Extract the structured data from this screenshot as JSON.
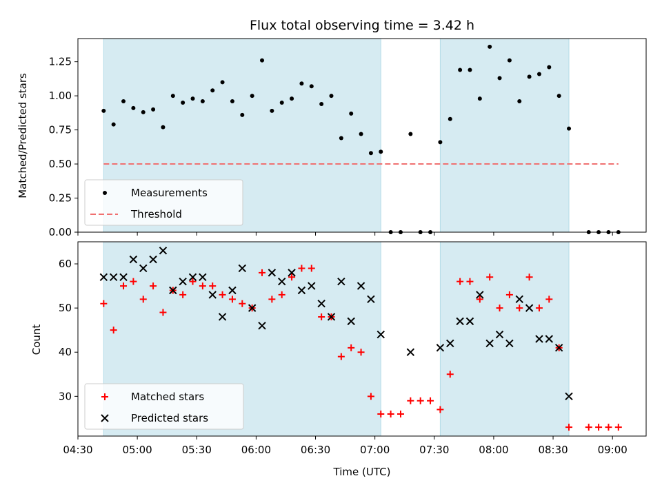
{
  "chart_data": [
    {
      "type": "scatter",
      "title": "Flux total observing time = 3.42 h",
      "ylabel": "Matched/Predicted stars",
      "xlabel": "",
      "ylim": [
        0,
        1.42
      ],
      "xlim": [
        "04:30",
        "09:17"
      ],
      "yticks": [
        0.0,
        0.25,
        0.5,
        0.75,
        1.0,
        1.25
      ],
      "ytick_labels": [
        "0.00",
        "0.25",
        "0.50",
        "0.75",
        "1.00",
        "1.25"
      ],
      "shaded_intervals": [
        [
          "04:43",
          "07:03"
        ],
        [
          "07:33",
          "08:38"
        ]
      ],
      "legend": {
        "placement": "lower-left",
        "entries": [
          {
            "label": "Measurements",
            "marker": "dot",
            "color": "#000000"
          },
          {
            "label": "Threshold",
            "marker": "dashed-line",
            "color": "#f07070"
          }
        ]
      },
      "series": [
        {
          "name": "Measurements",
          "color": "#000000",
          "points": [
            [
              "04:43",
              0.89
            ],
            [
              "04:48",
              0.79
            ],
            [
              "04:53",
              0.96
            ],
            [
              "04:58",
              0.91
            ],
            [
              "05:03",
              0.88
            ],
            [
              "05:08",
              0.9
            ],
            [
              "05:13",
              0.77
            ],
            [
              "05:18",
              1.0
            ],
            [
              "05:23",
              0.95
            ],
            [
              "05:28",
              0.98
            ],
            [
              "05:33",
              0.96
            ],
            [
              "05:38",
              1.04
            ],
            [
              "05:43",
              1.1
            ],
            [
              "05:48",
              0.96
            ],
            [
              "05:53",
              0.86
            ],
            [
              "05:58",
              1.0
            ],
            [
              "06:03",
              1.26
            ],
            [
              "06:08",
              0.89
            ],
            [
              "06:13",
              0.95
            ],
            [
              "06:18",
              0.98
            ],
            [
              "06:23",
              1.09
            ],
            [
              "06:28",
              1.07
            ],
            [
              "06:33",
              0.94
            ],
            [
              "06:38",
              1.0
            ],
            [
              "06:43",
              0.69
            ],
            [
              "06:48",
              0.87
            ],
            [
              "06:53",
              0.72
            ],
            [
              "06:58",
              0.58
            ],
            [
              "07:03",
              0.59
            ],
            [
              "07:08",
              0.0
            ],
            [
              "07:13",
              0.0
            ],
            [
              "07:18",
              0.72
            ],
            [
              "07:23",
              0.0
            ],
            [
              "07:28",
              0.0
            ],
            [
              "07:33",
              0.66
            ],
            [
              "07:38",
              0.83
            ],
            [
              "07:43",
              1.19
            ],
            [
              "07:48",
              1.19
            ],
            [
              "07:53",
              0.98
            ],
            [
              "07:58",
              1.36
            ],
            [
              "08:03",
              1.13
            ],
            [
              "08:08",
              1.26
            ],
            [
              "08:13",
              0.96
            ],
            [
              "08:18",
              1.14
            ],
            [
              "08:23",
              1.16
            ],
            [
              "08:28",
              1.21
            ],
            [
              "08:33",
              1.0
            ],
            [
              "08:38",
              0.76
            ],
            [
              "08:48",
              0.0
            ],
            [
              "08:53",
              0.0
            ],
            [
              "08:58",
              0.0
            ],
            [
              "09:03",
              0.0
            ]
          ]
        },
        {
          "name": "Threshold",
          "color": "#f07070",
          "line": [
            [
              "04:43",
              0.5
            ],
            [
              "09:03",
              0.5
            ]
          ]
        }
      ]
    },
    {
      "type": "scatter",
      "title": "",
      "ylabel": "Count",
      "xlabel": "Time (UTC)",
      "ylim": [
        21,
        65
      ],
      "xlim": [
        "04:30",
        "09:17"
      ],
      "yticks": [
        30,
        40,
        50,
        60
      ],
      "ytick_labels": [
        "30",
        "40",
        "50",
        "60"
      ],
      "xtick_labels": [
        "04:30",
        "05:00",
        "05:30",
        "06:00",
        "06:30",
        "07:00",
        "07:30",
        "08:00",
        "08:30",
        "09:00"
      ],
      "shaded_intervals": [
        [
          "04:43",
          "07:03"
        ],
        [
          "07:33",
          "08:38"
        ]
      ],
      "legend": {
        "placement": "lower-left",
        "entries": [
          {
            "label": "Matched stars",
            "marker": "plus",
            "color": "#ff0000"
          },
          {
            "label": "Predicted stars",
            "marker": "x",
            "color": "#000000"
          }
        ]
      },
      "series": [
        {
          "name": "Matched stars",
          "marker": "plus",
          "color": "#ff0000",
          "points": [
            [
              "04:43",
              51
            ],
            [
              "04:48",
              45
            ],
            [
              "04:53",
              55
            ],
            [
              "04:58",
              56
            ],
            [
              "05:03",
              52
            ],
            [
              "05:08",
              55
            ],
            [
              "05:13",
              49
            ],
            [
              "05:18",
              54
            ],
            [
              "05:23",
              53
            ],
            [
              "05:28",
              56
            ],
            [
              "05:33",
              55
            ],
            [
              "05:38",
              55
            ],
            [
              "05:43",
              53
            ],
            [
              "05:48",
              52
            ],
            [
              "05:53",
              51
            ],
            [
              "05:58",
              50
            ],
            [
              "06:03",
              58
            ],
            [
              "06:08",
              52
            ],
            [
              "06:13",
              53
            ],
            [
              "06:18",
              57
            ],
            [
              "06:23",
              59
            ],
            [
              "06:28",
              59
            ],
            [
              "06:33",
              48
            ],
            [
              "06:38",
              48
            ],
            [
              "06:43",
              39
            ],
            [
              "06:48",
              41
            ],
            [
              "06:53",
              40
            ],
            [
              "06:58",
              30
            ],
            [
              "07:03",
              26
            ],
            [
              "07:08",
              26
            ],
            [
              "07:13",
              26
            ],
            [
              "07:18",
              29
            ],
            [
              "07:23",
              29
            ],
            [
              "07:28",
              29
            ],
            [
              "07:33",
              27
            ],
            [
              "07:38",
              35
            ],
            [
              "07:43",
              56
            ],
            [
              "07:48",
              56
            ],
            [
              "07:53",
              52
            ],
            [
              "07:58",
              57
            ],
            [
              "08:03",
              50
            ],
            [
              "08:08",
              53
            ],
            [
              "08:13",
              50
            ],
            [
              "08:18",
              57
            ],
            [
              "08:23",
              50
            ],
            [
              "08:28",
              52
            ],
            [
              "08:33",
              41
            ],
            [
              "08:38",
              23
            ],
            [
              "08:48",
              23
            ],
            [
              "08:53",
              23
            ],
            [
              "08:58",
              23
            ],
            [
              "09:03",
              23
            ]
          ]
        },
        {
          "name": "Predicted stars",
          "marker": "x",
          "color": "#000000",
          "points": [
            [
              "04:43",
              57
            ],
            [
              "04:48",
              57
            ],
            [
              "04:53",
              57
            ],
            [
              "04:58",
              61
            ],
            [
              "05:03",
              59
            ],
            [
              "05:08",
              61
            ],
            [
              "05:13",
              63
            ],
            [
              "05:18",
              54
            ],
            [
              "05:23",
              56
            ],
            [
              "05:28",
              57
            ],
            [
              "05:33",
              57
            ],
            [
              "05:38",
              53
            ],
            [
              "05:43",
              48
            ],
            [
              "05:48",
              54
            ],
            [
              "05:53",
              59
            ],
            [
              "05:58",
              50
            ],
            [
              "06:03",
              46
            ],
            [
              "06:08",
              58
            ],
            [
              "06:13",
              56
            ],
            [
              "06:18",
              58
            ],
            [
              "06:23",
              54
            ],
            [
              "06:28",
              55
            ],
            [
              "06:33",
              51
            ],
            [
              "06:38",
              48
            ],
            [
              "06:43",
              56
            ],
            [
              "06:48",
              47
            ],
            [
              "06:53",
              55
            ],
            [
              "06:58",
              52
            ],
            [
              "07:03",
              44
            ],
            [
              "07:18",
              40
            ],
            [
              "07:33",
              41
            ],
            [
              "07:38",
              42
            ],
            [
              "07:43",
              47
            ],
            [
              "07:48",
              47
            ],
            [
              "07:53",
              53
            ],
            [
              "07:58",
              42
            ],
            [
              "08:03",
              44
            ],
            [
              "08:08",
              42
            ],
            [
              "08:13",
              52
            ],
            [
              "08:18",
              50
            ],
            [
              "08:23",
              43
            ],
            [
              "08:28",
              43
            ],
            [
              "08:33",
              41
            ],
            [
              "08:38",
              30
            ]
          ]
        }
      ]
    }
  ]
}
